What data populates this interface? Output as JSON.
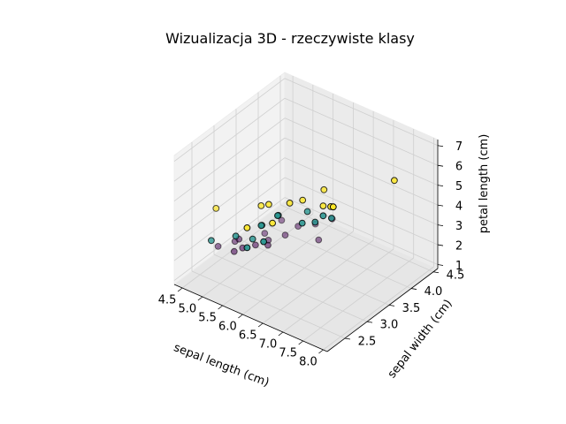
{
  "chart_data": {
    "type": "scatter3d",
    "title": "Wizualizacja 3D - rzeczywiste klasy",
    "xlabel": "sepal length (cm)",
    "ylabel": "sepal width (cm)",
    "zlabel": "petal length (cm)",
    "xlim": [
      4.3,
      8.1
    ],
    "ylim": [
      2.1,
      4.6
    ],
    "zlim": [
      0.8,
      7.3
    ],
    "xticks": [
      "4.5",
      "5.0",
      "5.5",
      "6.0",
      "6.5",
      "7.0",
      "7.5",
      "8.0"
    ],
    "yticks": [
      "2.5",
      "3.0",
      "3.5",
      "4.0",
      "4.5"
    ],
    "zticks": [
      "1",
      "2",
      "3",
      "4",
      "5",
      "6",
      "7"
    ],
    "grid": true,
    "colors": {
      "class0": "#440154",
      "class1": "#21918c",
      "class2": "#fde725"
    },
    "series": [
      {
        "class": 0,
        "points": [
          [
            4.4,
            3.0,
            1.3
          ],
          [
            4.6,
            3.2,
            1.4
          ],
          [
            4.7,
            3.2,
            1.6
          ],
          [
            4.8,
            3.0,
            1.4
          ],
          [
            4.9,
            3.1,
            1.5
          ],
          [
            5.0,
            3.3,
            1.4
          ],
          [
            5.1,
            3.5,
            1.4
          ],
          [
            5.2,
            3.4,
            1.4
          ],
          [
            5.3,
            3.7,
            1.5
          ],
          [
            5.4,
            3.9,
            1.7
          ],
          [
            5.5,
            4.2,
            1.4
          ],
          [
            5.7,
            4.4,
            1.5
          ],
          [
            5.8,
            4.0,
            1.2
          ],
          [
            5.1,
            3.8,
            1.9
          ],
          [
            4.9,
            3.6,
            1.4
          ]
        ]
      },
      {
        "class": 1,
        "points": [
          [
            5.0,
            2.3,
            3.3
          ],
          [
            5.5,
            2.4,
            3.8
          ],
          [
            5.6,
            2.9,
            3.6
          ],
          [
            5.7,
            2.6,
            3.5
          ],
          [
            5.8,
            2.7,
            4.1
          ],
          [
            6.0,
            2.2,
            4.0
          ],
          [
            6.1,
            2.8,
            4.7
          ],
          [
            6.3,
            2.3,
            4.4
          ],
          [
            6.4,
            3.2,
            4.5
          ],
          [
            6.6,
            2.9,
            4.6
          ],
          [
            6.7,
            3.1,
            4.4
          ],
          [
            6.9,
            3.1,
            4.9
          ],
          [
            7.0,
            3.2,
            4.7
          ],
          [
            5.9,
            3.0,
            4.2
          ]
        ]
      },
      {
        "class": 2,
        "points": [
          [
            4.9,
            2.5,
            4.5
          ],
          [
            5.8,
            2.7,
            5.1
          ],
          [
            6.0,
            2.2,
            5.0
          ],
          [
            6.3,
            2.5,
            5.0
          ],
          [
            6.4,
            2.8,
            5.6
          ],
          [
            6.5,
            3.0,
            5.5
          ],
          [
            6.7,
            3.3,
            5.7
          ],
          [
            6.9,
            3.1,
            5.4
          ],
          [
            7.2,
            3.0,
            5.8
          ],
          [
            7.7,
            2.6,
            6.9
          ],
          [
            7.9,
            3.8,
            6.4
          ],
          [
            6.1,
            2.6,
            5.6
          ]
        ]
      }
    ]
  }
}
